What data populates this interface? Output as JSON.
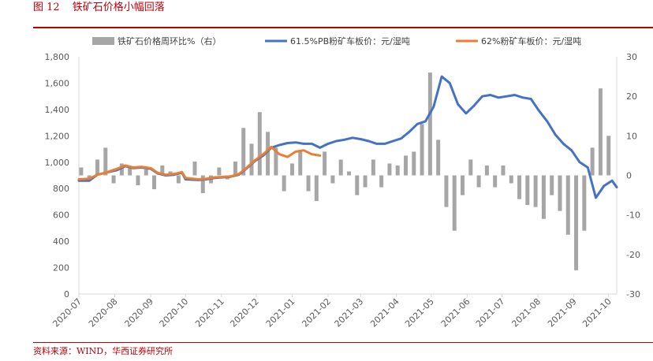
{
  "figure": {
    "number": "图 12",
    "title": "铁矿石价格小幅回落",
    "source": "资料来源：WIND，华西证券研究所"
  },
  "colors": {
    "title_red": "#b8000a",
    "bar_gray": "#a6a6a6",
    "line_blue": "#4472c4",
    "line_orange": "#ed7d31",
    "axis_text": "#595959"
  },
  "chart_data": {
    "type": "line",
    "title": "",
    "xlabel": "",
    "ylabel_left": "",
    "ylabel_right": "",
    "x_range": [
      "2020-07-01",
      "2021-10-08"
    ],
    "ylim_left": [
      0,
      1800
    ],
    "ylim_right": [
      -30,
      30
    ],
    "yticks_left": [
      "0",
      "200",
      "400",
      "600",
      "800",
      "1,000",
      "1,200",
      "1,400",
      "1,600",
      "1,800"
    ],
    "yticks_right": [
      "-30",
      "-20",
      "-10",
      "0",
      "10",
      "20",
      "30"
    ],
    "xticks": [
      "2020-07",
      "2020-08",
      "2020-09",
      "2020-10",
      "2020-11",
      "2020-12",
      "2021-01",
      "2021-02",
      "2021-03",
      "2021-04",
      "2021-05",
      "2021-06",
      "2021-07",
      "2021-08",
      "2021-09",
      "2021-10"
    ],
    "grid": false,
    "legend_position": "top",
    "series": [
      {
        "name": "铁矿石价格周环比%（右）",
        "kind": "bar",
        "axis": "right",
        "color": "#a6a6a6",
        "points": [
          [
            "2020-07-03",
            2
          ],
          [
            "2020-07-10",
            -1
          ],
          [
            "2020-07-17",
            4
          ],
          [
            "2020-07-24",
            7
          ],
          [
            "2020-07-31",
            -2
          ],
          [
            "2020-08-07",
            3
          ],
          [
            "2020-08-14",
            2
          ],
          [
            "2020-08-21",
            -2.5
          ],
          [
            "2020-08-28",
            1.5
          ],
          [
            "2020-09-04",
            -3.5
          ],
          [
            "2020-09-11",
            2.5
          ],
          [
            "2020-09-18",
            1
          ],
          [
            "2020-09-25",
            -2
          ],
          [
            "2020-10-09",
            3.5
          ],
          [
            "2020-10-16",
            -4.5
          ],
          [
            "2020-10-23",
            -2
          ],
          [
            "2020-10-30",
            2
          ],
          [
            "2020-11-06",
            -1
          ],
          [
            "2020-11-13",
            3.5
          ],
          [
            "2020-11-20",
            12
          ],
          [
            "2020-11-27",
            8
          ],
          [
            "2020-12-04",
            16
          ],
          [
            "2020-12-11",
            11
          ],
          [
            "2020-12-18",
            7
          ],
          [
            "2020-12-25",
            -4
          ],
          [
            "2021-01-01",
            3
          ],
          [
            "2021-01-08",
            6
          ],
          [
            "2021-01-15",
            -4
          ],
          [
            "2021-01-22",
            -6.5
          ],
          [
            "2021-01-29",
            6
          ],
          [
            "2021-02-05",
            -2
          ],
          [
            "2021-02-12",
            4
          ],
          [
            "2021-02-19",
            1
          ],
          [
            "2021-02-26",
            -5
          ],
          [
            "2021-03-05",
            -3
          ],
          [
            "2021-03-12",
            4
          ],
          [
            "2021-03-19",
            -3
          ],
          [
            "2021-03-26",
            3
          ],
          [
            "2021-04-02",
            2.5
          ],
          [
            "2021-04-09",
            5
          ],
          [
            "2021-04-16",
            6
          ],
          [
            "2021-04-23",
            13
          ],
          [
            "2021-04-30",
            26
          ],
          [
            "2021-05-07",
            9
          ],
          [
            "2021-05-14",
            -8
          ],
          [
            "2021-05-21",
            -14
          ],
          [
            "2021-05-28",
            -5
          ],
          [
            "2021-06-04",
            4
          ],
          [
            "2021-06-11",
            -3
          ],
          [
            "2021-06-18",
            2.5
          ],
          [
            "2021-06-25",
            -3
          ],
          [
            "2021-07-02",
            2.5
          ],
          [
            "2021-07-09",
            -2
          ],
          [
            "2021-07-16",
            -6
          ],
          [
            "2021-07-23",
            -7.5
          ],
          [
            "2021-07-30",
            -8
          ],
          [
            "2021-08-06",
            -11
          ],
          [
            "2021-08-13",
            -5
          ],
          [
            "2021-08-20",
            -9
          ],
          [
            "2021-08-27",
            -15
          ],
          [
            "2021-09-03",
            -24
          ],
          [
            "2021-09-10",
            -14
          ],
          [
            "2021-09-17",
            7
          ],
          [
            "2021-09-24",
            22
          ],
          [
            "2021-10-01",
            10
          ]
        ]
      },
      {
        "name": "61.5%PB粉矿车板价：元/湿吨",
        "kind": "line",
        "axis": "left",
        "color": "#4472c4",
        "points": [
          [
            "2020-07-01",
            860
          ],
          [
            "2020-07-10",
            860
          ],
          [
            "2020-07-17",
            905
          ],
          [
            "2020-07-24",
            920
          ],
          [
            "2020-08-03",
            940
          ],
          [
            "2020-08-10",
            970
          ],
          [
            "2020-08-17",
            955
          ],
          [
            "2020-08-24",
            960
          ],
          [
            "2020-09-01",
            950
          ],
          [
            "2020-09-07",
            915
          ],
          [
            "2020-09-14",
            900
          ],
          [
            "2020-09-21",
            905
          ],
          [
            "2020-09-28",
            920
          ],
          [
            "2020-10-01",
            870
          ],
          [
            "2020-10-12",
            865
          ],
          [
            "2020-10-19",
            870
          ],
          [
            "2020-10-26",
            880
          ],
          [
            "2020-11-02",
            885
          ],
          [
            "2020-11-09",
            890
          ],
          [
            "2020-11-16",
            905
          ],
          [
            "2020-11-23",
            955
          ],
          [
            "2020-11-30",
            1010
          ],
          [
            "2020-12-07",
            1050
          ],
          [
            "2020-12-14",
            1110
          ],
          [
            "2020-12-21",
            1130
          ],
          [
            "2020-12-28",
            1145
          ],
          [
            "2021-01-04",
            1150
          ],
          [
            "2021-01-11",
            1140
          ],
          [
            "2021-01-18",
            1140
          ],
          [
            "2021-01-25",
            1110
          ],
          [
            "2021-02-01",
            1140
          ],
          [
            "2021-02-08",
            1160
          ],
          [
            "2021-02-15",
            1170
          ],
          [
            "2021-02-22",
            1185
          ],
          [
            "2021-03-01",
            1175
          ],
          [
            "2021-03-08",
            1160
          ],
          [
            "2021-03-15",
            1140
          ],
          [
            "2021-03-22",
            1140
          ],
          [
            "2021-03-29",
            1160
          ],
          [
            "2021-04-05",
            1180
          ],
          [
            "2021-04-12",
            1230
          ],
          [
            "2021-04-19",
            1290
          ],
          [
            "2021-04-26",
            1310
          ],
          [
            "2021-05-03",
            1420
          ],
          [
            "2021-05-10",
            1650
          ],
          [
            "2021-05-17",
            1600
          ],
          [
            "2021-05-24",
            1440
          ],
          [
            "2021-05-31",
            1370
          ],
          [
            "2021-06-07",
            1430
          ],
          [
            "2021-06-14",
            1500
          ],
          [
            "2021-06-21",
            1510
          ],
          [
            "2021-06-28",
            1490
          ],
          [
            "2021-07-05",
            1500
          ],
          [
            "2021-07-12",
            1510
          ],
          [
            "2021-07-19",
            1490
          ],
          [
            "2021-07-26",
            1480
          ],
          [
            "2021-08-02",
            1390
          ],
          [
            "2021-08-09",
            1310
          ],
          [
            "2021-08-16",
            1210
          ],
          [
            "2021-08-23",
            1140
          ],
          [
            "2021-08-30",
            1090
          ],
          [
            "2021-09-06",
            1000
          ],
          [
            "2021-09-13",
            960
          ],
          [
            "2021-09-20",
            730
          ],
          [
            "2021-09-27",
            820
          ],
          [
            "2021-10-04",
            860
          ],
          [
            "2021-10-08",
            810
          ]
        ]
      },
      {
        "name": "62%粉矿车板价：元/湿吨",
        "kind": "line",
        "axis": "left",
        "color": "#ed7d31",
        "points": [
          [
            "2020-07-01",
            870
          ],
          [
            "2020-07-10",
            875
          ],
          [
            "2020-07-17",
            905
          ],
          [
            "2020-07-24",
            920
          ],
          [
            "2020-08-03",
            950
          ],
          [
            "2020-08-10",
            975
          ],
          [
            "2020-08-17",
            960
          ],
          [
            "2020-08-24",
            965
          ],
          [
            "2020-09-01",
            955
          ],
          [
            "2020-09-07",
            920
          ],
          [
            "2020-09-14",
            905
          ],
          [
            "2020-09-21",
            910
          ],
          [
            "2020-09-28",
            925
          ],
          [
            "2020-10-01",
            880
          ],
          [
            "2020-10-12",
            870
          ],
          [
            "2020-10-19",
            875
          ],
          [
            "2020-10-26",
            885
          ],
          [
            "2020-11-02",
            888
          ],
          [
            "2020-11-09",
            892
          ],
          [
            "2020-11-16",
            910
          ],
          [
            "2020-11-23",
            960
          ],
          [
            "2020-11-30",
            1015
          ],
          [
            "2020-12-07",
            1060
          ],
          [
            "2020-12-14",
            1115
          ],
          [
            "2020-12-21",
            1060
          ],
          [
            "2020-12-28",
            1040
          ],
          [
            "2021-01-04",
            1080
          ],
          [
            "2021-01-11",
            1090
          ],
          [
            "2021-01-18",
            1060
          ],
          [
            "2021-01-25",
            1050
          ]
        ]
      }
    ]
  }
}
